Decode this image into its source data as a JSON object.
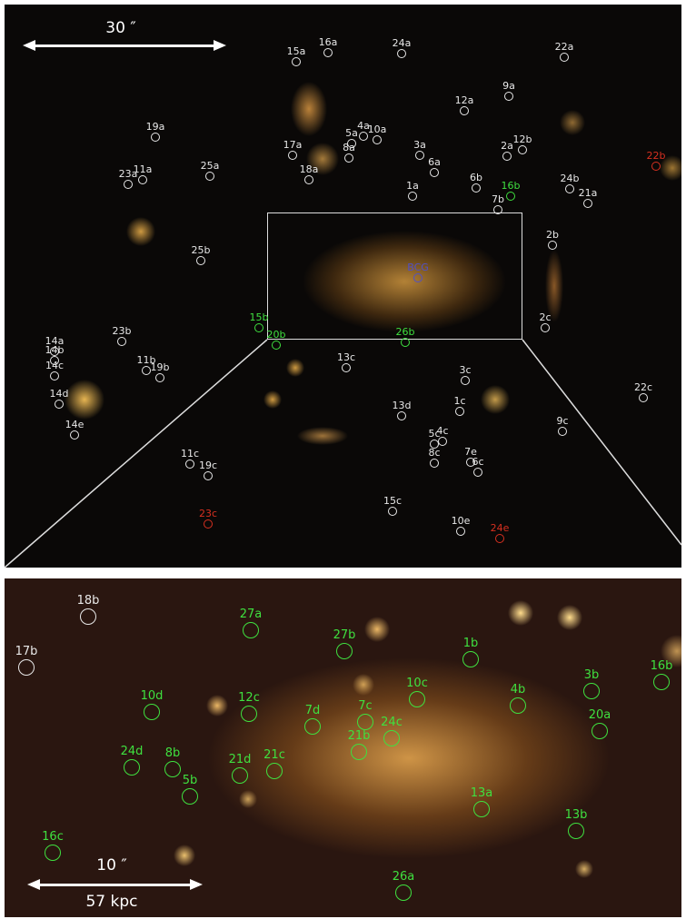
{
  "top_panel": {
    "scale_bar_label": "30 ″",
    "markers": [
      {
        "label": "15a",
        "color": "white"
      },
      {
        "label": "16a",
        "color": "white"
      },
      {
        "label": "24a",
        "color": "white"
      },
      {
        "label": "22a",
        "color": "white"
      },
      {
        "label": "9a",
        "color": "white"
      },
      {
        "label": "12a",
        "color": "white"
      },
      {
        "label": "19a",
        "color": "white"
      },
      {
        "label": "4a",
        "color": "white"
      },
      {
        "label": "5a",
        "color": "white"
      },
      {
        "label": "10a",
        "color": "white"
      },
      {
        "label": "8a",
        "color": "white"
      },
      {
        "label": "17a",
        "color": "white"
      },
      {
        "label": "3a",
        "color": "white"
      },
      {
        "label": "6a",
        "color": "white"
      },
      {
        "label": "2a",
        "color": "white"
      },
      {
        "label": "12b",
        "color": "white"
      },
      {
        "label": "18a",
        "color": "white"
      },
      {
        "label": "11a",
        "color": "white"
      },
      {
        "label": "23a",
        "color": "white"
      },
      {
        "label": "25a",
        "color": "white"
      },
      {
        "label": "1a",
        "color": "white"
      },
      {
        "label": "6b",
        "color": "white"
      },
      {
        "label": "16b",
        "color": "green"
      },
      {
        "label": "7b",
        "color": "white"
      },
      {
        "label": "24b",
        "color": "white"
      },
      {
        "label": "21a",
        "color": "white"
      },
      {
        "label": "22b",
        "color": "red"
      },
      {
        "label": "2b",
        "color": "white"
      },
      {
        "label": "BCG",
        "color": "blue"
      },
      {
        "label": "25b",
        "color": "white"
      },
      {
        "label": "15b",
        "color": "green"
      },
      {
        "label": "20b",
        "color": "green"
      },
      {
        "label": "26b",
        "color": "green"
      },
      {
        "label": "2c",
        "color": "white"
      },
      {
        "label": "23b",
        "color": "white"
      },
      {
        "label": "14a",
        "color": "white"
      },
      {
        "label": "14b",
        "color": "white"
      },
      {
        "label": "14c",
        "color": "white"
      },
      {
        "label": "11b",
        "color": "white"
      },
      {
        "label": "19b",
        "color": "white"
      },
      {
        "label": "13c",
        "color": "white"
      },
      {
        "label": "3c",
        "color": "white"
      },
      {
        "label": "14d",
        "color": "white"
      },
      {
        "label": "13d",
        "color": "white"
      },
      {
        "label": "1c",
        "color": "white"
      },
      {
        "label": "22c",
        "color": "white"
      },
      {
        "label": "9c",
        "color": "white"
      },
      {
        "label": "14e",
        "color": "white"
      },
      {
        "label": "5c",
        "color": "white"
      },
      {
        "label": "4c",
        "color": "white"
      },
      {
        "label": "8c",
        "color": "white"
      },
      {
        "label": "7e",
        "color": "white"
      },
      {
        "label": "6c",
        "color": "white"
      },
      {
        "label": "11c",
        "color": "white"
      },
      {
        "label": "19c",
        "color": "white"
      },
      {
        "label": "15c",
        "color": "white"
      },
      {
        "label": "23c",
        "color": "red"
      },
      {
        "label": "10e",
        "color": "white"
      },
      {
        "label": "24e",
        "color": "red"
      }
    ]
  },
  "bottom_panel": {
    "scale_bar_label": "10 ″",
    "scale_bar_sublabel": "57 kpc",
    "markers": [
      {
        "label": "18b",
        "color": "white"
      },
      {
        "label": "17b",
        "color": "white"
      },
      {
        "label": "27a",
        "color": "green"
      },
      {
        "label": "27b",
        "color": "green"
      },
      {
        "label": "1b",
        "color": "green"
      },
      {
        "label": "16b",
        "color": "green"
      },
      {
        "label": "3b",
        "color": "green"
      },
      {
        "label": "10d",
        "color": "green"
      },
      {
        "label": "12c",
        "color": "green"
      },
      {
        "label": "7d",
        "color": "green"
      },
      {
        "label": "7c",
        "color": "green"
      },
      {
        "label": "10c",
        "color": "green"
      },
      {
        "label": "4b",
        "color": "green"
      },
      {
        "label": "20a",
        "color": "green"
      },
      {
        "label": "24d",
        "color": "green"
      },
      {
        "label": "8b",
        "color": "green"
      },
      {
        "label": "21d",
        "color": "green"
      },
      {
        "label": "21c",
        "color": "green"
      },
      {
        "label": "21b",
        "color": "green"
      },
      {
        "label": "24c",
        "color": "green"
      },
      {
        "label": "5b",
        "color": "green"
      },
      {
        "label": "13a",
        "color": "green"
      },
      {
        "label": "13b",
        "color": "green"
      },
      {
        "label": "16c",
        "color": "green"
      },
      {
        "label": "26a",
        "color": "green"
      }
    ]
  },
  "colors": {
    "white": "#e8e8e8",
    "green": "#3fe03f",
    "red": "#d83020",
    "blue": "#5050c8"
  }
}
